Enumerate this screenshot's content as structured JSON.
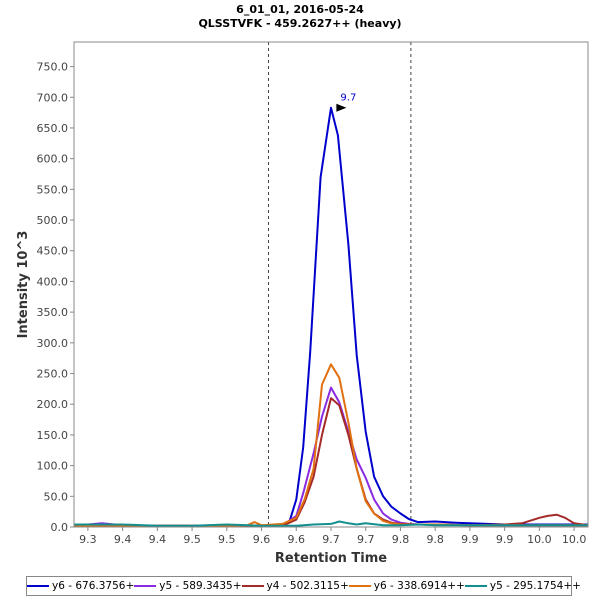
{
  "title_line1": "6_01_01, 2016-05-24",
  "title_line2": "QLSSTVFK - 459.2627++ (heavy)",
  "chart_data": {
    "type": "line",
    "xlabel": "Retention Time",
    "ylabel": "Intensity 10^3",
    "xlim": [
      9.28,
      10.02
    ],
    "ylim": [
      0,
      790
    ],
    "x_ticks": [
      9.3,
      9.35,
      9.4,
      9.45,
      9.5,
      9.55,
      9.6,
      9.65,
      9.7,
      9.75,
      9.8,
      9.85,
      9.9,
      9.95,
      10.0
    ],
    "x_tick_labels": [
      "9.3",
      "9.4",
      "9.4",
      "9.5",
      "9.5",
      "9.6",
      "9.6",
      "9.7",
      "9.7",
      "9.8",
      "9.8",
      "9.9",
      "9.9",
      "10.0",
      "10.0"
    ],
    "y_ticks": [
      0,
      50,
      100,
      150,
      200,
      250,
      300,
      350,
      400,
      450,
      500,
      550,
      600,
      650,
      700,
      750
    ],
    "y_tick_labels": [
      "0.0",
      "50.0",
      "100.0",
      "150.0",
      "200.0",
      "250.0",
      "300.0",
      "350.0",
      "400.0",
      "450.0",
      "500.0",
      "550.0",
      "600.0",
      "650.0",
      "700.0",
      "750.0"
    ],
    "vlines": [
      9.56,
      9.765
    ],
    "peak_annotation": {
      "label": "9.7",
      "x": 9.675,
      "y": 683
    },
    "series": [
      {
        "name": "y6 - 676.3756+",
        "color": "#0000cc",
        "x": [
          9.28,
          9.3,
          9.32,
          9.35,
          9.4,
          9.45,
          9.5,
          9.55,
          9.58,
          9.59,
          9.6,
          9.61,
          9.62,
          9.635,
          9.65,
          9.66,
          9.675,
          9.687,
          9.7,
          9.712,
          9.725,
          9.737,
          9.75,
          9.762,
          9.775,
          9.8,
          9.83,
          9.85,
          9.9,
          9.95,
          10.0,
          10.02
        ],
        "y": [
          3,
          3,
          4,
          2,
          2,
          2,
          2,
          2,
          4,
          8,
          45,
          130,
          285,
          570,
          683,
          638,
          460,
          280,
          155,
          82,
          50,
          33,
          22,
          13,
          8,
          9,
          7,
          6,
          4,
          4,
          4,
          4
        ]
      },
      {
        "name": "y5 - 589.3435+",
        "color": "#8a2be2",
        "x": [
          9.28,
          9.3,
          9.32,
          9.35,
          9.4,
          9.45,
          9.5,
          9.55,
          9.58,
          9.6,
          9.61,
          9.625,
          9.637,
          9.65,
          9.662,
          9.675,
          9.687,
          9.7,
          9.712,
          9.725,
          9.737,
          9.75,
          9.762,
          9.775,
          9.8,
          9.85,
          9.9,
          9.95,
          10.0,
          10.02
        ],
        "y": [
          3,
          4,
          6,
          3,
          2,
          2,
          2,
          2,
          3,
          18,
          55,
          120,
          180,
          227,
          203,
          155,
          110,
          80,
          45,
          22,
          12,
          7,
          5,
          4,
          4,
          3,
          3,
          3,
          3,
          3
        ]
      },
      {
        "name": "y4 - 502.3115+",
        "color": "#a52a2a",
        "x": [
          9.28,
          9.3,
          9.35,
          9.4,
          9.45,
          9.5,
          9.55,
          9.58,
          9.6,
          9.612,
          9.625,
          9.637,
          9.65,
          9.662,
          9.675,
          9.687,
          9.7,
          9.712,
          9.725,
          9.737,
          9.75,
          9.775,
          9.8,
          9.85,
          9.9,
          9.925,
          9.95,
          9.962,
          9.975,
          9.987,
          10.0,
          10.02
        ],
        "y": [
          2,
          2,
          2,
          2,
          2,
          2,
          2,
          2,
          12,
          40,
          82,
          150,
          210,
          198,
          150,
          95,
          45,
          22,
          12,
          7,
          5,
          4,
          4,
          3,
          4,
          6,
          15,
          18,
          20,
          15,
          6,
          3
        ]
      },
      {
        "name": "y6 - 338.6914++",
        "color": "#e07010",
        "x": [
          9.28,
          9.3,
          9.35,
          9.4,
          9.45,
          9.5,
          9.53,
          9.54,
          9.55,
          9.58,
          9.6,
          9.612,
          9.625,
          9.637,
          9.65,
          9.662,
          9.675,
          9.687,
          9.7,
          9.712,
          9.725,
          9.737,
          9.75,
          9.775,
          9.8,
          9.85,
          9.9,
          9.95,
          10.0,
          10.02
        ],
        "y": [
          2,
          2,
          2,
          2,
          2,
          2,
          3,
          8,
          3,
          5,
          15,
          45,
          95,
          232,
          265,
          243,
          170,
          95,
          42,
          22,
          10,
          6,
          4,
          4,
          4,
          3,
          3,
          3,
          3,
          3
        ]
      },
      {
        "name": "y5 - 295.1754++",
        "color": "#138f8f",
        "x": [
          9.28,
          9.3,
          9.35,
          9.4,
          9.45,
          9.5,
          9.55,
          9.58,
          9.6,
          9.625,
          9.65,
          9.662,
          9.675,
          9.687,
          9.7,
          9.725,
          9.75,
          9.775,
          9.8,
          9.85,
          9.9,
          9.95,
          10.0,
          10.02
        ],
        "y": [
          4,
          4,
          4,
          2,
          2,
          4,
          2,
          2,
          2,
          4,
          5,
          9,
          6,
          4,
          6,
          3,
          3,
          4,
          3,
          3,
          3,
          3,
          3,
          3
        ]
      }
    ]
  }
}
